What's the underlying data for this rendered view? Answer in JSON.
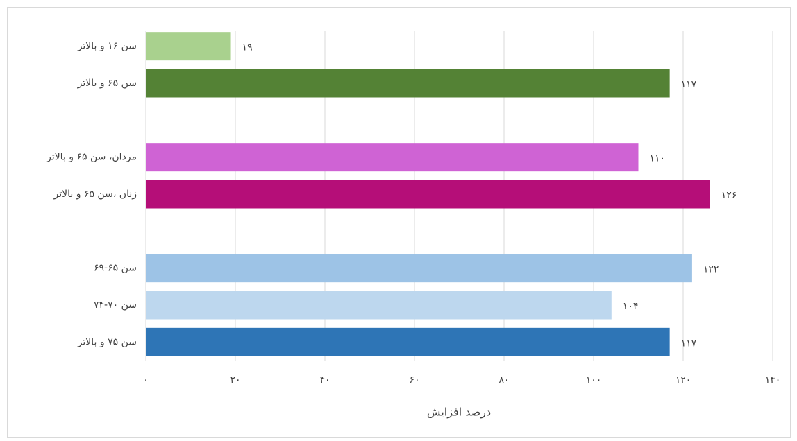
{
  "chart_data": {
    "type": "bar",
    "orientation": "horizontal",
    "categories": [
      "سن ۱۶ و بالاتر",
      "سن ۶۵ و بالاتر",
      null,
      "مردان، سن ۶۵ و بالاتر",
      "زنان ،سن ۶۵ و بالاتر",
      null,
      "سن ۶۵-۶۹",
      "سن ۷۰-۷۴",
      "سن ۷۵ و بالاتر"
    ],
    "values": [
      19,
      117,
      null,
      110,
      126,
      null,
      122,
      104,
      117
    ],
    "value_labels": [
      "۱۹",
      "۱۱۷",
      null,
      "۱۱۰",
      "۱۲۶",
      null,
      "۱۲۲",
      "۱۰۴",
      "۱۱۷"
    ],
    "colors": [
      "#a9d18e",
      "#548235",
      null,
      "#cf63d4",
      "#b50e78",
      null,
      "#9dc3e6",
      "#bdd7ee",
      "#2e75b6"
    ],
    "xlabel": "درصد افزایش",
    "xlim": [
      0,
      140
    ],
    "xticks": [
      {
        "value": 0,
        "label": "۰"
      },
      {
        "value": 20,
        "label": "۲۰"
      },
      {
        "value": 40,
        "label": "۴۰"
      },
      {
        "value": 60,
        "label": "۶۰"
      },
      {
        "value": 80,
        "label": "۸۰"
      },
      {
        "value": 100,
        "label": "۱۰۰"
      },
      {
        "value": 120,
        "label": "۱۲۰"
      },
      {
        "value": 140,
        "label": "۱۴۰"
      }
    ],
    "grid": true
  }
}
